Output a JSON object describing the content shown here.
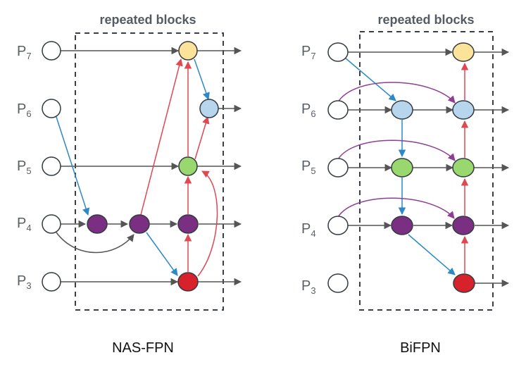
{
  "panels": [
    {
      "id": "nasfpn",
      "caption": "NAS-FPN",
      "block_title": "repeated blocks",
      "level_labels": [
        {
          "base": "P",
          "sub": "7"
        },
        {
          "base": "P",
          "sub": "6"
        },
        {
          "base": "P",
          "sub": "5"
        },
        {
          "base": "P",
          "sub": "4"
        },
        {
          "base": "P",
          "sub": "3"
        }
      ]
    },
    {
      "id": "bifpn",
      "caption": "BiFPN",
      "block_title": "repeated blocks",
      "level_labels": [
        {
          "base": "P",
          "sub": "7"
        },
        {
          "base": "P",
          "sub": "6"
        },
        {
          "base": "P",
          "sub": "5"
        },
        {
          "base": "P",
          "sub": "4"
        },
        {
          "base": "P",
          "sub": "3"
        }
      ]
    }
  ],
  "colors": {
    "p7_node": "#fbe49a",
    "p6_node": "#b7d6ee",
    "p5_node": "#98d86f",
    "p4_node": "#7a2f82",
    "p3_node": "#d7222b",
    "input_node": "#ffffff",
    "node_stroke": "#333a40",
    "flow_arrow": "#555555",
    "blue_arrow": "#2a89c6",
    "red_arrow": "#e04750",
    "purple_arrow": "#8e3e95",
    "box_dash": "#3a3f45"
  }
}
